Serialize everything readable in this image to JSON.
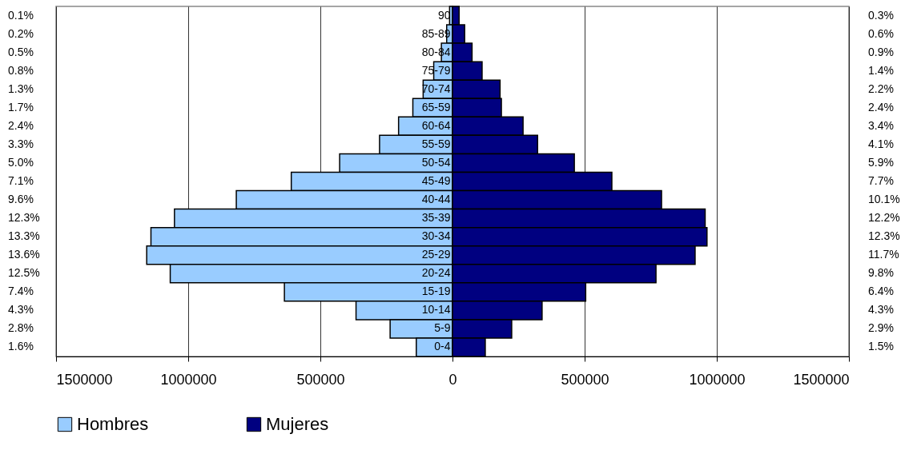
{
  "chart_data": {
    "type": "bar",
    "orientation": "horizontal",
    "stacked": true,
    "categories": [
      "90",
      "85-89",
      "80-84",
      "75-79",
      "70-74",
      "65-59",
      "60-64",
      "55-59",
      "50-54",
      "45-49",
      "40-44",
      "35-39",
      "30-34",
      "25-29",
      "20-24",
      "15-19",
      "10-14",
      "5-9",
      "0-4"
    ],
    "series": [
      {
        "name": "Hombres",
        "color": "#99ccff",
        "values": [
          -11000,
          -22000,
          -42000,
          -71000,
          -111000,
          -150000,
          -204000,
          -276000,
          -427000,
          -610000,
          -818000,
          -1052000,
          -1141000,
          -1157000,
          -1068000,
          -636000,
          -365000,
          -236000,
          -137000
        ]
      },
      {
        "name": "Mujeres",
        "color": "#000080",
        "values": [
          25000,
          46000,
          74000,
          112000,
          180000,
          185000,
          267000,
          322000,
          461000,
          603000,
          791000,
          956000,
          963000,
          918000,
          770000,
          504000,
          339000,
          224000,
          124000
        ]
      }
    ],
    "annotations": [
      "0.1%",
      "0.2%",
      "0.5%",
      "0.8%",
      "1.3%",
      "1.7%",
      "2.4%",
      "3.3%",
      "5.0%",
      "7.1%",
      "9.6%",
      "12.3%",
      "13.3%",
      "13.6%",
      "12.5%",
      "7.4%",
      "4.3%",
      "2.8%",
      "1.6%",
      "0.3%",
      "0.6%",
      "0.9%",
      "1.4%",
      "2.2%",
      "2.4%",
      "3.4%",
      "4.1%",
      "5.9%",
      "7.7%",
      "10.1%",
      "12.2%",
      "12.3%",
      "11.7%",
      "9.8%",
      "6.4%",
      "4.3%",
      "2.9%",
      "1.5%"
    ],
    "xlim": [
      -1500000,
      1500000
    ],
    "xticks": [
      {
        "value": -1500000,
        "label": "1500000"
      },
      {
        "value": -1000000,
        "label": "1000000"
      },
      {
        "value": -500000,
        "label": "500000"
      },
      0,
      500000,
      1000000,
      1500000
    ],
    "grid": "x",
    "legend": "bottom"
  }
}
